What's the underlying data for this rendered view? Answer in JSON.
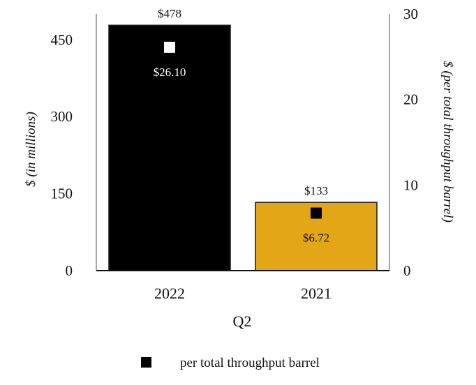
{
  "chart_data": {
    "type": "bar",
    "categories": [
      "2022",
      "2021"
    ],
    "xlabel": "Q2",
    "series": [
      {
        "values": [
          478,
          133
        ],
        "value_labels": [
          "$478",
          "$133"
        ],
        "colors": [
          "#000000",
          "#E3A617"
        ],
        "axis": "left"
      },
      {
        "name": "per total throughput barrel",
        "type": "scatter",
        "marker": "square",
        "values": [
          26.1,
          6.72
        ],
        "value_labels": [
          "$26.10",
          "$6.72"
        ],
        "marker_colors": [
          "#ffffff",
          "#000000"
        ],
        "axis": "right"
      }
    ],
    "ylabel": "$ (in millions)",
    "ylim": [
      0,
      500
    ],
    "yticks": [
      "0",
      "150",
      "300",
      "450"
    ],
    "y2label": "$ (per total throughput barrel)",
    "y2lim": [
      0,
      30
    ],
    "y2ticks": [
      "0",
      "10",
      "20",
      "30"
    ],
    "grid": false,
    "legend_position": "bottom"
  }
}
